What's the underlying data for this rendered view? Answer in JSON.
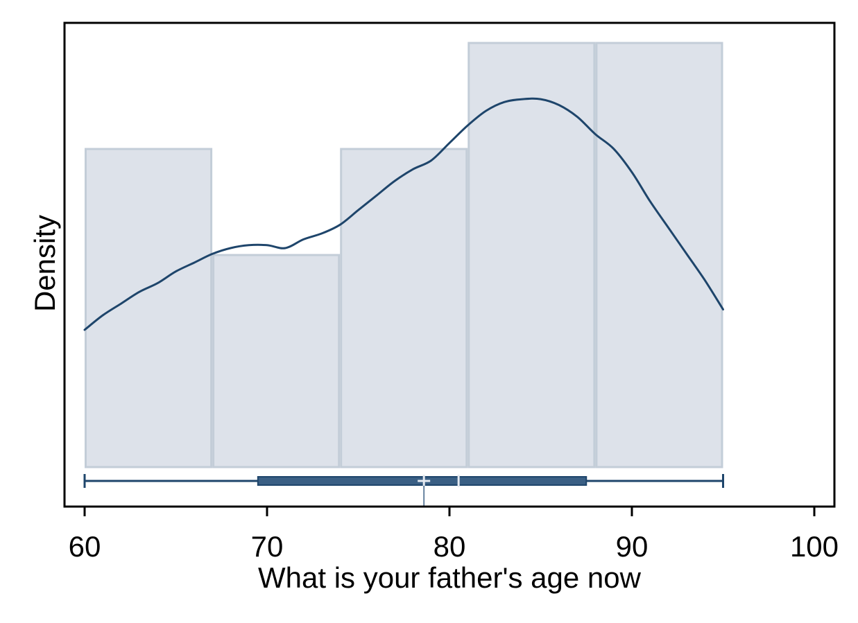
{
  "chart_data": {
    "type": "histogram",
    "xlabel": "What is your father's age now",
    "ylabel": "Density",
    "xlim": [
      59,
      101
    ],
    "x_ticks": [
      60,
      70,
      80,
      90,
      100
    ],
    "x_tick_labels": [
      "60",
      "70",
      "80",
      "90",
      "100"
    ],
    "y_ticks": [],
    "grid": false,
    "legend": "none",
    "bins": [
      {
        "start": 60,
        "end": 67,
        "count": 3
      },
      {
        "start": 67,
        "end": 74,
        "count": 2
      },
      {
        "start": 74,
        "end": 81,
        "count": 3
      },
      {
        "start": 81,
        "end": 88,
        "count": 4
      },
      {
        "start": 88,
        "end": 95,
        "count": 4
      }
    ],
    "density_curve": {
      "x": [
        60,
        61,
        62,
        63,
        64,
        65,
        66,
        67,
        68,
        69,
        70,
        71,
        72,
        73,
        74,
        75,
        76,
        77,
        78,
        79,
        80,
        81,
        82,
        83,
        84,
        85,
        86,
        87,
        88,
        89,
        90,
        91,
        92,
        93,
        94,
        95
      ],
      "y": [
        0.47,
        0.52,
        0.56,
        0.6,
        0.63,
        0.67,
        0.7,
        0.73,
        0.75,
        0.76,
        0.76,
        0.75,
        0.78,
        0.8,
        0.83,
        0.88,
        0.93,
        0.98,
        1.02,
        1.05,
        1.11,
        1.17,
        1.22,
        1.25,
        1.26,
        1.26,
        1.24,
        1.2,
        1.14,
        1.09,
        1.01,
        0.91,
        0.82,
        0.73,
        0.64,
        0.54
      ]
    },
    "boxplot": {
      "min": 60,
      "q1": 69.5,
      "median": 80.5,
      "q3": 87.5,
      "max": 95,
      "mean": 78.6
    },
    "colors": {
      "bar_fill": "#dde2ea",
      "bar_stroke": "#c3cdd8",
      "curve": "#1e456b",
      "box": "#3a5f84",
      "whisker": "#1e456b",
      "marker": "#e6ebf2",
      "frame": "#000000"
    }
  }
}
